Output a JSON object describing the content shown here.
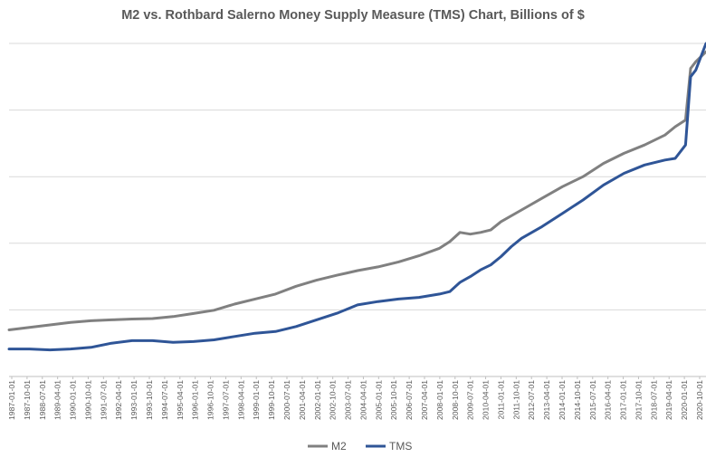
{
  "chart_data": {
    "type": "line",
    "title": "M2 vs. Rothbard Salerno Money Supply Measure (TMS) Chart, Billions of $",
    "xlabel": "",
    "ylabel": "",
    "x_tick_labels": [
      "1987-01-01",
      "1987-10-01",
      "1988-07-01",
      "1989-04-01",
      "1990-01-01",
      "1990-10-01",
      "1991-07-01",
      "1992-04-01",
      "1993-01-01",
      "1993-10-01",
      "1994-07-01",
      "1995-04-01",
      "1996-01-01",
      "1996-10-01",
      "1997-07-01",
      "1998-04-01",
      "1999-01-01",
      "1999-10-01",
      "2000-07-01",
      "2001-04-01",
      "2002-01-01",
      "2002-10-01",
      "2003-07-01",
      "2004-04-01",
      "2005-01-01",
      "2005-10-01",
      "2006-07-01",
      "2007-04-01",
      "2008-01-01",
      "2008-10-01",
      "2009-07-01",
      "2010-04-01",
      "2011-01-01",
      "2011-10-01",
      "2012-07-01",
      "2013-04-01",
      "2014-01-01",
      "2014-10-01",
      "2015-07-01",
      "2016-04-01",
      "2017-01-01",
      "2017-10-01",
      "2018-07-01",
      "2019-04-01",
      "2020-01-01",
      "2020-10-01"
    ],
    "y_axis_labels_shown": false,
    "ylim": [
      0,
      20000
    ],
    "grid": true,
    "legend": "bottom",
    "series": [
      {
        "name": "M2",
        "color": "#808080",
        "x": [
          1987.0,
          1988.0,
          1989.0,
          1990.0,
          1991.0,
          1992.0,
          1993.0,
          1994.0,
          1995.0,
          1996.0,
          1997.0,
          1998.0,
          1999.0,
          2000.0,
          2001.0,
          2002.0,
          2003.0,
          2004.0,
          2005.0,
          2006.0,
          2007.0,
          2008.0,
          2008.5,
          2009.0,
          2009.5,
          2010.0,
          2010.5,
          2011.0,
          2012.0,
          2013.0,
          2014.0,
          2015.0,
          2016.0,
          2017.0,
          2018.0,
          2019.0,
          2019.5,
          2020.0,
          2020.25,
          2020.5,
          2021.0
        ],
        "values": [
          2800,
          2950,
          3100,
          3250,
          3350,
          3400,
          3450,
          3480,
          3600,
          3780,
          3980,
          4350,
          4650,
          4950,
          5420,
          5780,
          6080,
          6360,
          6580,
          6880,
          7250,
          7700,
          8100,
          8650,
          8550,
          8650,
          8800,
          9300,
          10000,
          10700,
          11400,
          12000,
          12800,
          13400,
          13900,
          14500,
          15000,
          15400,
          18500,
          18900,
          19500
        ]
      },
      {
        "name": "TMS",
        "color": "#2F5597",
        "x": [
          1987.0,
          1988.0,
          1989.0,
          1990.0,
          1991.0,
          1992.0,
          1993.0,
          1994.0,
          1995.0,
          1996.0,
          1997.0,
          1998.0,
          1999.0,
          2000.0,
          2001.0,
          2002.0,
          2003.0,
          2004.0,
          2005.0,
          2006.0,
          2007.0,
          2008.0,
          2008.5,
          2009.0,
          2009.5,
          2010.0,
          2010.5,
          2011.0,
          2011.5,
          2012.0,
          2013.0,
          2014.0,
          2015.0,
          2016.0,
          2017.0,
          2018.0,
          2019.0,
          2019.5,
          2020.0,
          2020.25,
          2020.5,
          2021.0
        ],
        "values": [
          1650,
          1650,
          1600,
          1650,
          1750,
          2000,
          2150,
          2150,
          2050,
          2100,
          2200,
          2400,
          2600,
          2700,
          3000,
          3400,
          3800,
          4300,
          4500,
          4650,
          4750,
          4950,
          5100,
          5650,
          6000,
          6400,
          6700,
          7200,
          7800,
          8300,
          9000,
          9800,
          10600,
          11500,
          12200,
          12700,
          13000,
          13100,
          13900,
          18000,
          18400,
          20000
        ]
      }
    ]
  }
}
